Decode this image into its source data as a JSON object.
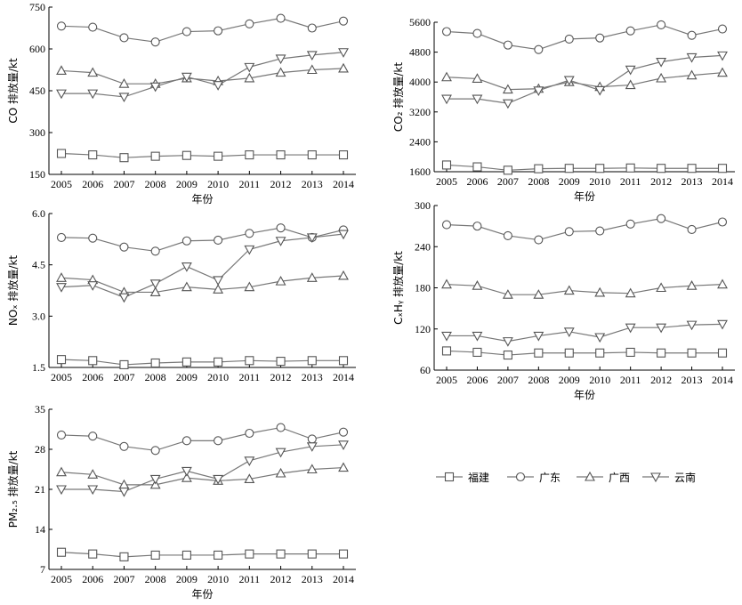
{
  "legend": {
    "items": [
      {
        "name": "福建",
        "marker": "square"
      },
      {
        "name": "广东",
        "marker": "circle"
      },
      {
        "name": "广西",
        "marker": "triangle-up"
      },
      {
        "name": "云南",
        "marker": "triangle-down"
      }
    ]
  },
  "chart_data": [
    {
      "type": "line",
      "title": "",
      "xlabel": "年份",
      "ylabel": "CO 排放量/kt",
      "x": [
        "2005",
        "2006",
        "2007",
        "2008",
        "2009",
        "2010",
        "2011",
        "2012",
        "2013",
        "2014"
      ],
      "ylim": [
        150,
        750
      ],
      "yticks": [
        "150",
        "300",
        "450",
        "600",
        "750"
      ],
      "series": [
        {
          "name": "福建",
          "marker": "square",
          "values": [
            225,
            220,
            210,
            215,
            218,
            215,
            220,
            220,
            220,
            220
          ]
        },
        {
          "name": "广东",
          "marker": "circle",
          "values": [
            682,
            678,
            640,
            625,
            662,
            665,
            690,
            710,
            675,
            700
          ]
        },
        {
          "name": "广西",
          "marker": "triangle-up",
          "values": [
            522,
            515,
            475,
            475,
            495,
            485,
            495,
            515,
            525,
            530
          ]
        },
        {
          "name": "云南",
          "marker": "triangle-down",
          "values": [
            440,
            440,
            428,
            465,
            500,
            470,
            535,
            565,
            578,
            588
          ]
        }
      ]
    },
    {
      "type": "line",
      "title": "",
      "xlabel": "年份",
      "ylabel": "CO₂ 排放量/kt",
      "x": [
        "2005",
        "2006",
        "2007",
        "2008",
        "2009",
        "2010",
        "2011",
        "2012",
        "2013",
        "2014"
      ],
      "ylim": [
        1600,
        5600
      ],
      "yticks": [
        "1600",
        "2400",
        "3200",
        "4000",
        "4800",
        "5600"
      ],
      "series": [
        {
          "name": "福建",
          "marker": "square",
          "values": [
            1780,
            1730,
            1640,
            1680,
            1690,
            1690,
            1700,
            1690,
            1690,
            1690
          ]
        },
        {
          "name": "广东",
          "marker": "circle",
          "values": [
            5350,
            5300,
            4990,
            4870,
            5150,
            5180,
            5370,
            5530,
            5250,
            5420
          ]
        },
        {
          "name": "广西",
          "marker": "triangle-up",
          "values": [
            4130,
            4090,
            3800,
            3820,
            4000,
            3870,
            3920,
            4100,
            4180,
            4250
          ]
        },
        {
          "name": "云南",
          "marker": "triangle-down",
          "values": [
            3550,
            3550,
            3430,
            3770,
            4050,
            3780,
            4330,
            4540,
            4660,
            4710
          ]
        }
      ]
    },
    {
      "type": "line",
      "title": "",
      "xlabel": "",
      "ylabel": "NOₓ 排放量/kt",
      "x": [
        "2005",
        "2006",
        "2007",
        "2008",
        "2009",
        "2010",
        "2011",
        "2012",
        "2013",
        "2014"
      ],
      "ylim": [
        1.5,
        6.0
      ],
      "yticks": [
        "1.5",
        "3.0",
        "4.5",
        "6.0"
      ],
      "series": [
        {
          "name": "福建",
          "marker": "square",
          "values": [
            1.73,
            1.7,
            1.58,
            1.63,
            1.66,
            1.66,
            1.7,
            1.68,
            1.7,
            1.7
          ]
        },
        {
          "name": "广东",
          "marker": "circle",
          "values": [
            5.3,
            5.28,
            5.02,
            4.9,
            5.2,
            5.22,
            5.42,
            5.58,
            5.3,
            5.52
          ]
        },
        {
          "name": "广西",
          "marker": "triangle-up",
          "values": [
            4.12,
            4.06,
            3.7,
            3.7,
            3.85,
            3.78,
            3.85,
            4.02,
            4.12,
            4.18
          ]
        },
        {
          "name": "云南",
          "marker": "triangle-down",
          "values": [
            3.85,
            3.9,
            3.55,
            3.95,
            4.45,
            4.05,
            4.95,
            5.2,
            5.3,
            5.4
          ]
        }
      ]
    },
    {
      "type": "line",
      "title": "",
      "xlabel": "年份",
      "ylabel": "CₓHᵧ 排放量/kt",
      "x": [
        "2005",
        "2006",
        "2007",
        "2008",
        "2009",
        "2010",
        "2011",
        "2012",
        "2013",
        "2014"
      ],
      "ylim": [
        60,
        300
      ],
      "yticks": [
        "60",
        "120",
        "180",
        "240",
        "300"
      ],
      "series": [
        {
          "name": "福建",
          "marker": "square",
          "values": [
            88,
            86,
            82,
            85,
            85,
            85,
            86,
            85,
            85,
            85
          ]
        },
        {
          "name": "广东",
          "marker": "circle",
          "values": [
            272,
            270,
            256,
            250,
            262,
            263,
            273,
            281,
            265,
            276
          ]
        },
        {
          "name": "广西",
          "marker": "triangle-up",
          "values": [
            185,
            183,
            170,
            170,
            176,
            173,
            172,
            180,
            183,
            185
          ]
        },
        {
          "name": "云南",
          "marker": "triangle-down",
          "values": [
            110,
            110,
            102,
            110,
            116,
            108,
            122,
            122,
            126,
            127
          ]
        }
      ]
    },
    {
      "type": "line",
      "title": "",
      "xlabel": "年份",
      "ylabel": "PM₂.₅ 排放量/kt",
      "x": [
        "2005",
        "2006",
        "2007",
        "2008",
        "2009",
        "2010",
        "2011",
        "2012",
        "2013",
        "2014"
      ],
      "ylim": [
        7,
        35
      ],
      "yticks": [
        "7",
        "14",
        "21",
        "28",
        "35"
      ],
      "series": [
        {
          "name": "福建",
          "marker": "square",
          "values": [
            10.0,
            9.7,
            9.2,
            9.5,
            9.5,
            9.5,
            9.7,
            9.7,
            9.7,
            9.7
          ]
        },
        {
          "name": "广东",
          "marker": "circle",
          "values": [
            30.5,
            30.3,
            28.5,
            27.8,
            29.5,
            29.5,
            30.8,
            31.8,
            29.8,
            31.0
          ]
        },
        {
          "name": "广西",
          "marker": "triangle-up",
          "values": [
            24.0,
            23.6,
            21.8,
            21.8,
            23.0,
            22.5,
            22.8,
            23.8,
            24.5,
            24.8
          ]
        },
        {
          "name": "云南",
          "marker": "triangle-down",
          "values": [
            21.0,
            21.0,
            20.6,
            22.8,
            24.2,
            22.8,
            26.0,
            27.5,
            28.5,
            28.8
          ]
        }
      ]
    }
  ]
}
